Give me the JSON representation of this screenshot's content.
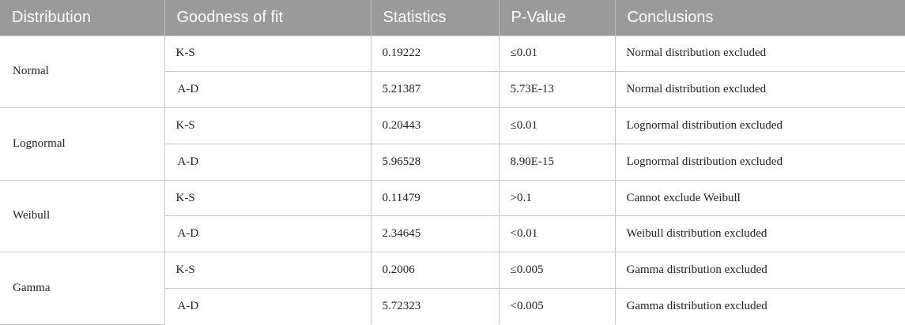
{
  "table": {
    "headers": [
      "Distribution",
      "Goodness of fit",
      "Statistics",
      "P-Value",
      "Conclusions"
    ],
    "groups": [
      {
        "distribution": "Normal",
        "rows": [
          {
            "test": "K-S",
            "statistic": "0.19222",
            "p_value": "≤0.01",
            "conclusion": "Normal distribution excluded"
          },
          {
            "test": "A-D",
            "statistic": "5.21387",
            "p_value": "5.73E-13",
            "conclusion": "Normal distribution excluded"
          }
        ]
      },
      {
        "distribution": "Lognormal",
        "rows": [
          {
            "test": "K-S",
            "statistic": "0.20443",
            "p_value": "≤0.01",
            "conclusion": "Lognormal distribution excluded"
          },
          {
            "test": "A-D",
            "statistic": "5.96528",
            "p_value": "8.90E-15",
            "conclusion": "Lognormal distribution excluded"
          }
        ]
      },
      {
        "distribution": "Weibull",
        "rows": [
          {
            "test": "K-S",
            "statistic": "0.11479",
            "p_value": ">0.1",
            "conclusion": "Cannot exclude Weibull"
          },
          {
            "test": "A-D",
            "statistic": "2.34645",
            "p_value": "<0.01",
            "conclusion": "Weibull distribution excluded"
          }
        ]
      },
      {
        "distribution": "Gamma",
        "rows": [
          {
            "test": "K-S",
            "statistic": "0.2006",
            "p_value": "≤0.005",
            "conclusion": "Gamma distribution excluded"
          },
          {
            "test": "A-D",
            "statistic": "5.72323",
            "p_value": "<0.005",
            "conclusion": "Gamma distribution excluded"
          }
        ]
      }
    ]
  }
}
